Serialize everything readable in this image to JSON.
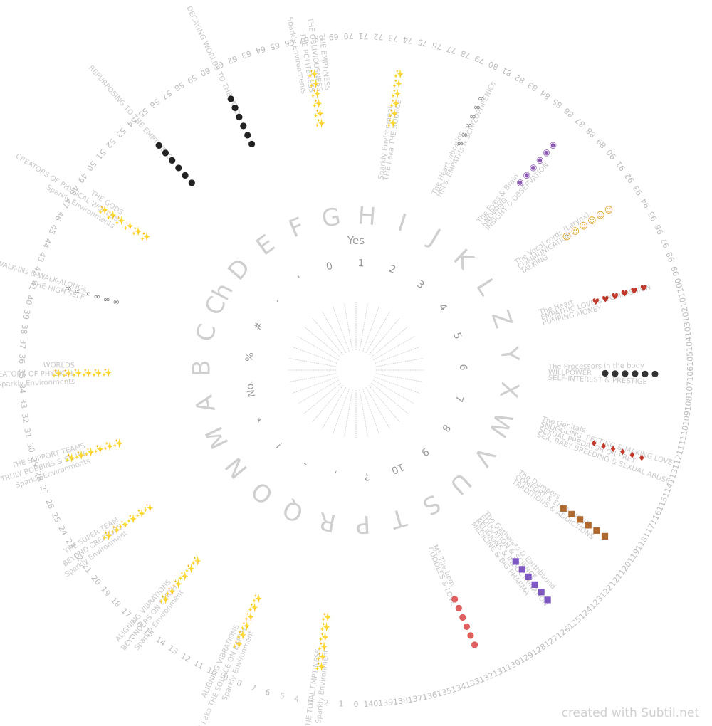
{
  "credit": "created with Subtil.net",
  "yes_label": "Yes",
  "ticks": [
    "0",
    "1",
    "2",
    "3",
    "4",
    "5",
    "6",
    "7",
    "8",
    "9",
    "10",
    "11",
    "12",
    "13",
    "14",
    "15",
    "16",
    "17",
    "18",
    "19",
    "20",
    "21",
    "22",
    "23",
    "24",
    "25",
    "26",
    "27",
    "28",
    "29",
    "30",
    "31",
    "32",
    "33",
    "34",
    "35",
    "36",
    "37",
    "38",
    "39",
    "40",
    "41",
    "42",
    "43",
    "44",
    "45",
    "46",
    "47",
    "48",
    "49",
    "50",
    "51",
    "52",
    "53",
    "54",
    "55",
    "56",
    "57",
    "58",
    "59",
    "60",
    "61",
    "62",
    "63",
    "64",
    "65",
    "66",
    "67",
    "68",
    "69",
    "70",
    "71",
    "72",
    "73",
    "74",
    "75",
    "76",
    "77",
    "78",
    "79",
    "80",
    "81",
    "82",
    "83",
    "84",
    "85",
    "86",
    "87",
    "88",
    "89",
    "90",
    "91",
    "92",
    "93",
    "94",
    "95",
    "96",
    "97",
    "98",
    "99",
    "100",
    "101",
    "102",
    "103",
    "104",
    "105",
    "106",
    "107",
    "108",
    "109",
    "110",
    "111",
    "112",
    "113",
    "114",
    "115",
    "116",
    "117",
    "118",
    "119",
    "120",
    "121",
    "122",
    "123",
    "124",
    "125",
    "126",
    "127",
    "128",
    "129",
    "130",
    "131",
    "132",
    "133",
    "134",
    "135",
    "136",
    "137",
    "138",
    "139",
    "140"
  ],
  "letters": [
    "A",
    "B",
    "C",
    "Ch",
    "D",
    "E",
    "F",
    "G",
    "H",
    "I",
    "J",
    "K",
    "L",
    "Z",
    "Y",
    "X",
    "W",
    "V",
    "U",
    "S",
    "T",
    "P",
    "R",
    "Q",
    "O",
    "N",
    "M"
  ],
  "symbols": [
    "0",
    "1",
    "2",
    "3",
    "4",
    "5",
    "6",
    "7",
    "8",
    "9",
    "10",
    "?",
    ",",
    "-",
    "!",
    "*",
    "No.",
    "%",
    "#",
    ".",
    "'"
  ],
  "sections": [
    {
      "lines": [
        "Sparkly Environment",
        "THE TOTAL EMPTINESS"
      ],
      "glyph": "✨",
      "color": "#e0b020"
    },
    {
      "lines": [
        "Sparkly Environment",
        "THE I aka THE SOURCE ON EARTH",
        "ALIGNING VIBRATIONS"
      ],
      "glyph": "✨",
      "color": "#e0b020"
    },
    {
      "lines": [
        "Sparkly Environment",
        "BEYONDERS ON EARTH",
        "ALIGNING VIBRATIONS"
      ],
      "glyph": "✨",
      "color": "#e0b020"
    },
    {
      "lines": [
        "Sparkly Environment",
        "BEYOND CREATORS",
        "THE SUPER TEAM"
      ],
      "glyph": "✨",
      "color": "#e0b020"
    },
    {
      "lines": [
        "Sparkly Environments",
        "YOURS TRULY BOBBINS & SNAKE",
        "THE SUPPORT TEAMS"
      ],
      "glyph": "✨",
      "color": "#e0b020"
    },
    {
      "lines": [
        "Sparkly Environments",
        "BEYOND CREATORS OF PHYSICAL",
        "WORLDS"
      ],
      "glyph": "✨",
      "color": "#e0b020"
    },
    {
      "lines": [
        "THE HIGH SELF",
        "THE WALK-INs & WALK-ALONGs"
      ],
      "glyph": "∞",
      "color": "#777777"
    },
    {
      "lines": [
        "Sparkly Environments",
        "CREATORS OF PHYSICAL WORLDS",
        "THE GODS"
      ],
      "glyph": "✨",
      "color": "#e0b020"
    },
    {
      "lines": [
        "REPURPOSING TO THE EMPTINESS"
      ],
      "glyph": "●",
      "color": "#222222"
    },
    {
      "lines": [
        "DECAYING WORLDS TO THE VOID"
      ],
      "glyph": "●",
      "color": "#222222"
    },
    {
      "lines": [
        "Sparkly Environments",
        "THE POLITENESS",
        "THE OBLIVIOUSNESS",
        "THE EMPTINESS"
      ],
      "glyph": "✨",
      "color": "#e0b020"
    },
    {
      "lines": [
        "Sparkly Environment",
        "THE I aka THE SOURCE"
      ],
      "glyph": "✨",
      "color": "#e0b020"
    },
    {
      "lines": [
        "The Heart vibration",
        "HSPs, EMPATHs & SCHIZOPHRENICs"
      ],
      "glyph": "∞",
      "color": "#777777"
    },
    {
      "lines": [
        "The Eyes & Brain",
        "KNOWING",
        "INSIGHT & OBSERVATION"
      ],
      "glyph": "◉",
      "color": "#8a5bb0"
    },
    {
      "lines": [
        "The Vocal cords (Larynx)",
        "COMMUNICATION",
        "TALKING"
      ],
      "glyph": "☺",
      "color": "#e0a020"
    },
    {
      "lines": [
        "The Heart",
        "EMPATHIC LOVE & COMPASSION",
        "PUMPING MONEY"
      ],
      "glyph": "♥",
      "color": "#c0392b"
    },
    {
      "lines": [
        "The Processors in the body",
        "WILLPOWER",
        "SELF-INTEREST & PRESTIGE"
      ],
      "glyph": "●",
      "color": "#333333"
    },
    {
      "lines": [
        "The Genitals",
        "SNUGGLING, PETTING & MAKING LOVE",
        "SEXUAL PREDATOR OR PREY",
        "SEX, BABY BREEDING & SEXUAL ABUSE"
      ],
      "glyph": "♦",
      "color": "#c0392b"
    },
    {
      "lines": [
        "The Dumpers",
        "COMFORT & ENJOYMENT",
        "TRADITIONS & ADDICTIONS"
      ],
      "glyph": "■",
      "color": "#b06a30"
    },
    {
      "lines": [
        "The Gatherers & Earthbound",
        "EDUCATION & SCIENCE",
        "RELIGIONS & INDOCTRINATION",
        "MEDICINE & BIG PHARMA"
      ],
      "glyph": "■",
      "color": "#7e57c2"
    },
    {
      "lines": [
        "ME The body",
        "CUDDLES & LOVE"
      ],
      "glyph": "●",
      "color": "#e06060"
    }
  ]
}
